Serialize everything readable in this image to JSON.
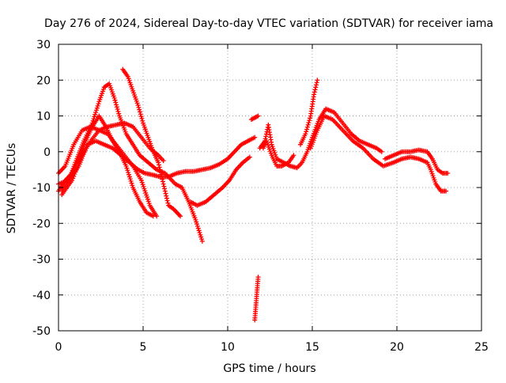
{
  "chart_data": {
    "type": "scatter",
    "title": "Day 276 of 2024, Sidereal Day-to-day VTEC variation (SDTVAR) for receiver iama",
    "xlabel": "GPS time / hours",
    "ylabel": "SDTVAR / TECUs",
    "xlim": [
      0,
      25
    ],
    "ylim": [
      -50,
      30
    ],
    "xticks": [
      0,
      5,
      10,
      15,
      20,
      25
    ],
    "yticks": [
      -50,
      -40,
      -30,
      -20,
      -10,
      0,
      10,
      20,
      30
    ],
    "grid": true,
    "legend": "none",
    "marker": "+",
    "color": "#ff0000",
    "series": [
      {
        "name": "track-1",
        "points": [
          [
            0.0,
            -6
          ],
          [
            0.4,
            -4
          ],
          [
            0.9,
            2
          ],
          [
            1.4,
            6
          ],
          [
            1.9,
            7
          ],
          [
            2.4,
            6
          ],
          [
            2.9,
            5
          ],
          [
            3.4,
            2
          ],
          [
            3.9,
            -1
          ],
          [
            4.4,
            -4
          ],
          [
            4.9,
            -8
          ],
          [
            5.4,
            -15
          ],
          [
            5.8,
            -18
          ]
        ]
      },
      {
        "name": "track-2",
        "points": [
          [
            0.0,
            -9
          ],
          [
            0.6,
            -8
          ],
          [
            1.2,
            -4
          ],
          [
            1.7,
            2
          ],
          [
            2.2,
            3
          ],
          [
            2.7,
            2
          ],
          [
            3.2,
            1
          ],
          [
            3.7,
            -1
          ],
          [
            4.2,
            -3
          ],
          [
            4.7,
            -5
          ],
          [
            5.1,
            -6
          ],
          [
            5.6,
            -6.5
          ],
          [
            6.0,
            -7
          ],
          [
            6.5,
            -7
          ],
          [
            7.0,
            -6
          ],
          [
            7.5,
            -5.5
          ],
          [
            8.0,
            -5.5
          ],
          [
            8.5,
            -5
          ],
          [
            9.0,
            -4.5
          ],
          [
            9.5,
            -3.5
          ],
          [
            10.0,
            -2
          ],
          [
            10.4,
            0
          ],
          [
            10.8,
            2
          ],
          [
            11.2,
            3
          ],
          [
            11.6,
            4
          ]
        ]
      },
      {
        "name": "track-3",
        "points": [
          [
            0.2,
            -11
          ],
          [
            0.6,
            -8
          ],
          [
            1.0,
            -3
          ],
          [
            1.5,
            3
          ],
          [
            2.0,
            8
          ],
          [
            2.4,
            14
          ],
          [
            2.7,
            18
          ],
          [
            3.0,
            19
          ],
          [
            3.3,
            15
          ],
          [
            3.6,
            10
          ],
          [
            4.0,
            5
          ],
          [
            4.4,
            2
          ],
          [
            4.8,
            -1
          ],
          [
            5.3,
            -3
          ],
          [
            5.8,
            -5
          ],
          [
            6.3,
            -6
          ],
          [
            6.9,
            -9
          ],
          [
            7.3,
            -10
          ],
          [
            7.7,
            -14
          ],
          [
            8.1,
            -19
          ],
          [
            8.5,
            -25
          ]
        ]
      },
      {
        "name": "track-4",
        "points": [
          [
            0.0,
            -11
          ],
          [
            0.4,
            -8
          ],
          [
            0.8,
            -6
          ],
          [
            1.2,
            -2
          ],
          [
            1.6,
            3
          ],
          [
            2.0,
            7
          ],
          [
            2.4,
            10
          ],
          [
            2.8,
            7
          ],
          [
            3.2,
            3
          ],
          [
            3.6,
            0
          ],
          [
            4.0,
            -4
          ],
          [
            4.4,
            -10
          ],
          [
            4.8,
            -14
          ],
          [
            5.2,
            -17
          ],
          [
            5.6,
            -18
          ]
        ]
      },
      {
        "name": "track-5",
        "points": [
          [
            0.2,
            -12
          ],
          [
            0.8,
            -8
          ],
          [
            1.4,
            -1
          ],
          [
            1.9,
            3
          ],
          [
            2.4,
            6
          ],
          [
            2.9,
            7
          ],
          [
            3.4,
            7.5
          ],
          [
            3.9,
            8
          ],
          [
            4.4,
            7
          ],
          [
            4.9,
            4
          ],
          [
            5.4,
            1
          ],
          [
            5.9,
            -1
          ],
          [
            6.2,
            -2.5
          ]
        ]
      },
      {
        "name": "track-6",
        "points": [
          [
            3.8,
            23
          ],
          [
            4.1,
            21
          ],
          [
            4.4,
            17
          ],
          [
            4.7,
            13
          ],
          [
            5.0,
            8
          ],
          [
            5.3,
            4
          ],
          [
            5.6,
            0
          ],
          [
            5.9,
            -3
          ],
          [
            6.2,
            -9
          ],
          [
            6.5,
            -15
          ],
          [
            6.8,
            -16
          ],
          [
            7.2,
            -18
          ]
        ]
      },
      {
        "name": "track-7",
        "points": [
          [
            7.8,
            -14
          ],
          [
            8.2,
            -15
          ],
          [
            8.7,
            -14
          ],
          [
            9.2,
            -12
          ],
          [
            9.7,
            -10
          ],
          [
            10.1,
            -8
          ],
          [
            10.5,
            -5
          ],
          [
            10.9,
            -3
          ],
          [
            11.3,
            -1.5
          ]
        ]
      },
      {
        "name": "track-8",
        "points": [
          [
            11.4,
            9
          ],
          [
            11.6,
            9.5
          ],
          [
            11.8,
            10
          ]
        ]
      },
      {
        "name": "track-9",
        "points": [
          [
            11.6,
            -47
          ],
          [
            11.65,
            -44
          ],
          [
            11.7,
            -41
          ],
          [
            11.75,
            -38
          ],
          [
            11.8,
            -35
          ]
        ]
      },
      {
        "name": "track-10",
        "points": [
          [
            11.9,
            1
          ],
          [
            12.2,
            3
          ],
          [
            12.4,
            7.5
          ],
          [
            12.6,
            2
          ],
          [
            12.9,
            -2
          ],
          [
            13.3,
            -3
          ],
          [
            13.7,
            -4
          ],
          [
            14.1,
            -4.5
          ],
          [
            14.4,
            -3
          ],
          [
            14.7,
            0
          ],
          [
            15.0,
            4
          ],
          [
            15.4,
            9
          ],
          [
            15.8,
            12
          ],
          [
            16.3,
            11
          ],
          [
            16.8,
            8
          ],
          [
            17.3,
            5
          ],
          [
            17.8,
            3
          ],
          [
            18.3,
            2
          ],
          [
            18.8,
            1
          ],
          [
            19.1,
            0
          ]
        ]
      },
      {
        "name": "track-11",
        "points": [
          [
            14.3,
            2
          ],
          [
            14.6,
            5
          ],
          [
            14.9,
            10
          ],
          [
            15.1,
            16
          ],
          [
            15.3,
            20
          ]
        ]
      },
      {
        "name": "track-12",
        "points": [
          [
            14.9,
            1
          ],
          [
            15.3,
            6
          ],
          [
            15.7,
            10
          ],
          [
            16.2,
            9
          ],
          [
            16.8,
            6
          ],
          [
            17.4,
            3
          ],
          [
            18.0,
            1
          ],
          [
            18.6,
            -2
          ],
          [
            19.2,
            -4
          ],
          [
            19.8,
            -3
          ],
          [
            20.3,
            -2
          ],
          [
            20.8,
            -1.5
          ],
          [
            21.3,
            -2
          ],
          [
            21.8,
            -3
          ],
          [
            22.0,
            -5
          ],
          [
            22.3,
            -9
          ],
          [
            22.6,
            -11
          ],
          [
            22.9,
            -11
          ]
        ]
      },
      {
        "name": "track-13",
        "points": [
          [
            19.3,
            -2
          ],
          [
            19.8,
            -1
          ],
          [
            20.3,
            0
          ],
          [
            20.8,
            0
          ],
          [
            21.3,
            0.5
          ],
          [
            21.8,
            0
          ],
          [
            22.1,
            -2
          ],
          [
            22.4,
            -5
          ],
          [
            22.7,
            -6
          ],
          [
            23.0,
            -6
          ]
        ]
      },
      {
        "name": "track-14",
        "points": [
          [
            12.1,
            1
          ],
          [
            12.3,
            3
          ],
          [
            12.6,
            -1
          ],
          [
            12.9,
            -4
          ],
          [
            13.2,
            -4
          ],
          [
            13.6,
            -3
          ],
          [
            13.9,
            -1
          ]
        ]
      }
    ]
  }
}
